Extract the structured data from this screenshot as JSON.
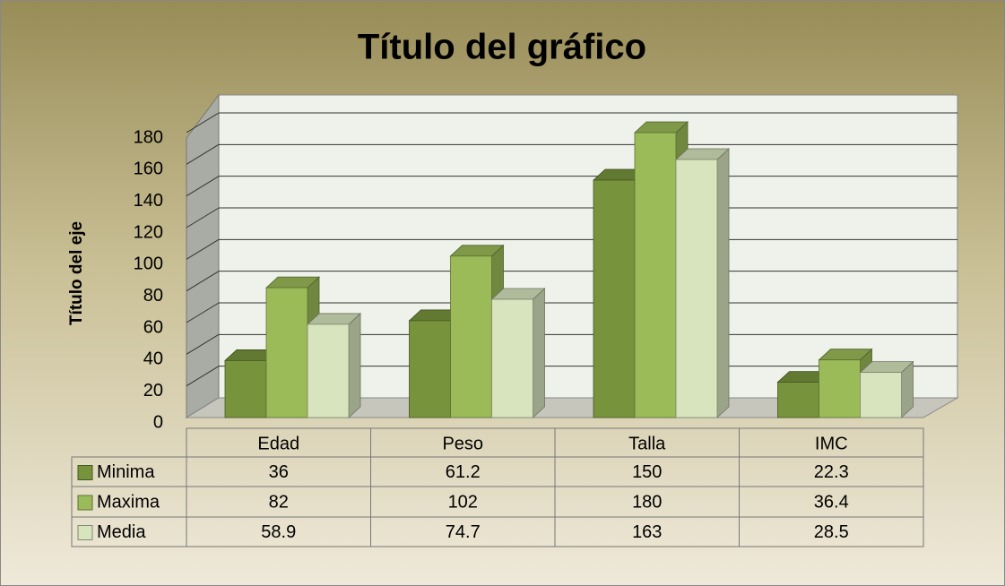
{
  "chart_data": {
    "type": "bar3d",
    "title": "Título del gráfico",
    "y_axis_label": "Título del eje",
    "categories": [
      "Edad",
      "Peso",
      "Talla",
      "IMC"
    ],
    "series": [
      {
        "name": "Minima",
        "color": "#77933c",
        "values": [
          36,
          61.2,
          150,
          22.3
        ]
      },
      {
        "name": "Maxima",
        "color": "#9bbb59",
        "values": [
          82,
          102,
          180,
          36.4
        ]
      },
      {
        "name": "Media",
        "color": "#d7e4bd",
        "values": [
          58.9,
          74.7,
          163,
          28.5
        ]
      }
    ],
    "ylim": [
      0,
      180
    ],
    "yticks": [
      0,
      20,
      40,
      60,
      80,
      100,
      120,
      140,
      160,
      180
    ],
    "grid": true,
    "data_table": true
  }
}
